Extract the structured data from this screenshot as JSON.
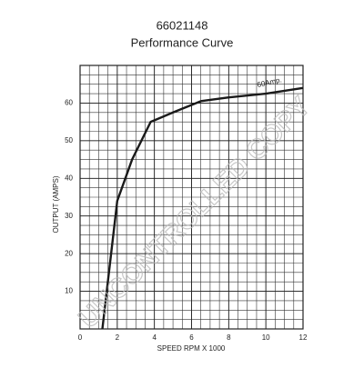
{
  "chart_data": {
    "type": "line",
    "title": "66021148",
    "subtitle": "Performance Curve",
    "x_label": "SPEED RPM X 1000",
    "y_label": "OUTPUT (AMPS)",
    "x": [
      1.2,
      2,
      2.8,
      3.8,
      5,
      6.5,
      8,
      10,
      12
    ],
    "series": [
      {
        "name": "60Amp.",
        "color": "#1a1a1a",
        "values": [
          0,
          34,
          45,
          55,
          57.5,
          60.5,
          61.5,
          62.5,
          64
        ]
      }
    ],
    "xlim": [
      0,
      12
    ],
    "xticks": [
      0,
      2,
      4,
      6,
      8,
      10,
      12
    ],
    "ylim": [
      0,
      70
    ],
    "yticks": [
      10,
      20,
      30,
      40,
      50,
      60
    ],
    "grid": true,
    "watermark": "UNCONTROLLED COPY"
  }
}
